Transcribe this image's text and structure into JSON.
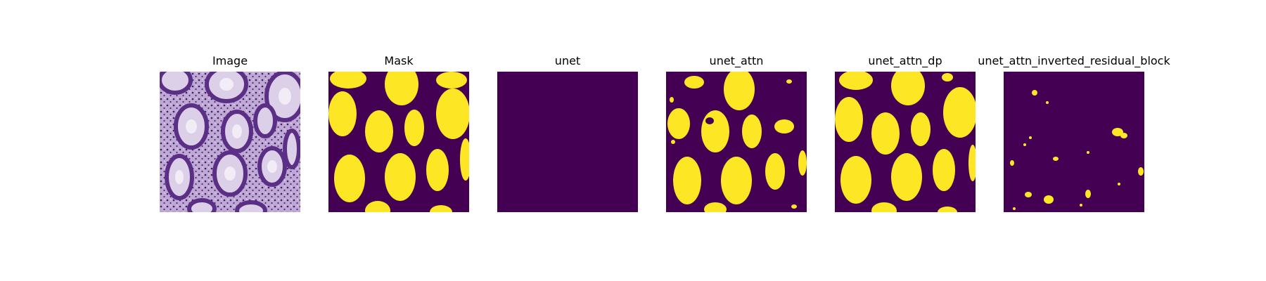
{
  "figure": {
    "panels": [
      {
        "title": "Image",
        "kind": "histology"
      },
      {
        "title": "Mask",
        "kind": "mask"
      },
      {
        "title": "unet",
        "kind": "empty"
      },
      {
        "title": "unet_attn",
        "kind": "attn"
      },
      {
        "title": "unet_attn_dp",
        "kind": "dp"
      },
      {
        "title": "unet_attn_inverted_residual_block",
        "kind": "irb"
      }
    ],
    "colors": {
      "background": "#440154",
      "foreground": "#fde725",
      "edge": "#21918c",
      "tissue_bg": "#c9b8d8",
      "tissue_dark": "#5b2f86",
      "tissue_light": "#e8e2ef"
    }
  }
}
